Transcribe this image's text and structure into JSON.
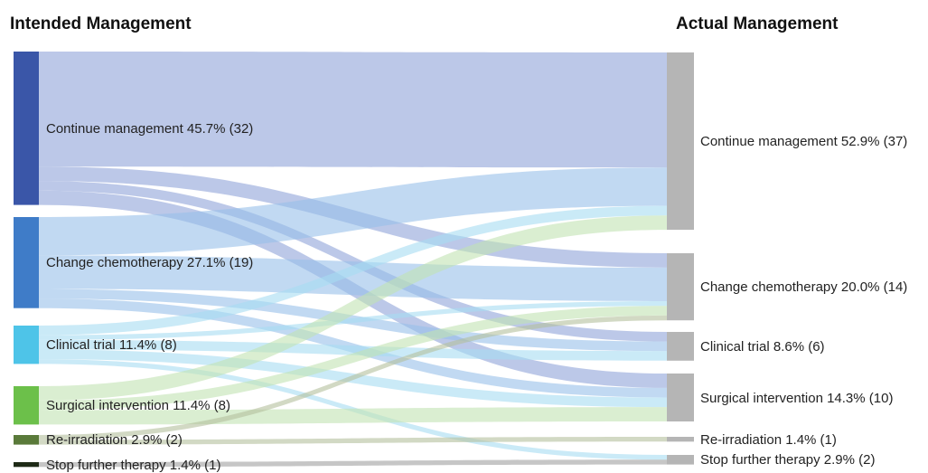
{
  "chart_data": {
    "type": "sankey",
    "left_title": "Intended Management",
    "right_title": "Actual Management",
    "left_nodes": [
      {
        "id": "cm",
        "label": "Continue management 45.7% (32)",
        "value": 32,
        "color": "#3a56a8",
        "link_color": "#8fa3d8"
      },
      {
        "id": "cc",
        "label": "Change chemotherapy 27.1% (19)",
        "value": 19,
        "color": "#3f7cc8",
        "link_color": "#98c0ea"
      },
      {
        "id": "ct",
        "label": "Clinical trial 11.4% (8)",
        "value": 8,
        "color": "#4ec4e8",
        "link_color": "#a6dcf2"
      },
      {
        "id": "si",
        "label": "Surgical intervention 11.4% (8)",
        "value": 8,
        "color": "#6cc04a",
        "link_color": "#c2e3b2"
      },
      {
        "id": "ri",
        "label": "Re-irradiation 2.9% (2)",
        "value": 2,
        "color": "#5a7a3a",
        "link_color": "#b4bf9c"
      },
      {
        "id": "sf",
        "label": "Stop further therapy 1.4% (1)",
        "value": 1,
        "color": "#1e2a16",
        "link_color": "#a0a0a0"
      }
    ],
    "right_nodes": [
      {
        "id": "cm",
        "label": "Continue management 52.9% (37)",
        "value": 37,
        "color": "#b5b5b5"
      },
      {
        "id": "cc",
        "label": "Change chemotherapy 20.0% (14)",
        "value": 14,
        "color": "#b5b5b5"
      },
      {
        "id": "ct",
        "label": "Clinical trial 8.6% (6)",
        "value": 6,
        "color": "#b5b5b5"
      },
      {
        "id": "si",
        "label": "Surgical intervention 14.3% (10)",
        "value": 10,
        "color": "#b5b5b5"
      },
      {
        "id": "ri",
        "label": "Re-irradiation 1.4% (1)",
        "value": 1,
        "color": "#b5b5b5"
      },
      {
        "id": "sf",
        "label": "Stop further therapy 2.9% (2)",
        "value": 2,
        "color": "#b5b5b5"
      }
    ],
    "links": [
      {
        "source": "cm",
        "target": "cm",
        "value": 24
      },
      {
        "source": "cm",
        "target": "cc",
        "value": 3
      },
      {
        "source": "cm",
        "target": "ct",
        "value": 2
      },
      {
        "source": "cm",
        "target": "si",
        "value": 3
      },
      {
        "source": "cc",
        "target": "cm",
        "value": 8
      },
      {
        "source": "cc",
        "target": "cc",
        "value": 7
      },
      {
        "source": "cc",
        "target": "ct",
        "value": 2
      },
      {
        "source": "cc",
        "target": "si",
        "value": 2
      },
      {
        "source": "ct",
        "target": "cm",
        "value": 2
      },
      {
        "source": "ct",
        "target": "cc",
        "value": 1
      },
      {
        "source": "ct",
        "target": "ct",
        "value": 2
      },
      {
        "source": "ct",
        "target": "si",
        "value": 2
      },
      {
        "source": "ct",
        "target": "sf",
        "value": 1
      },
      {
        "source": "si",
        "target": "cm",
        "value": 3
      },
      {
        "source": "si",
        "target": "cc",
        "value": 2
      },
      {
        "source": "si",
        "target": "si",
        "value": 3
      },
      {
        "source": "ri",
        "target": "cc",
        "value": 1
      },
      {
        "source": "ri",
        "target": "ri",
        "value": 1
      },
      {
        "source": "sf",
        "target": "sf",
        "value": 1
      }
    ]
  }
}
